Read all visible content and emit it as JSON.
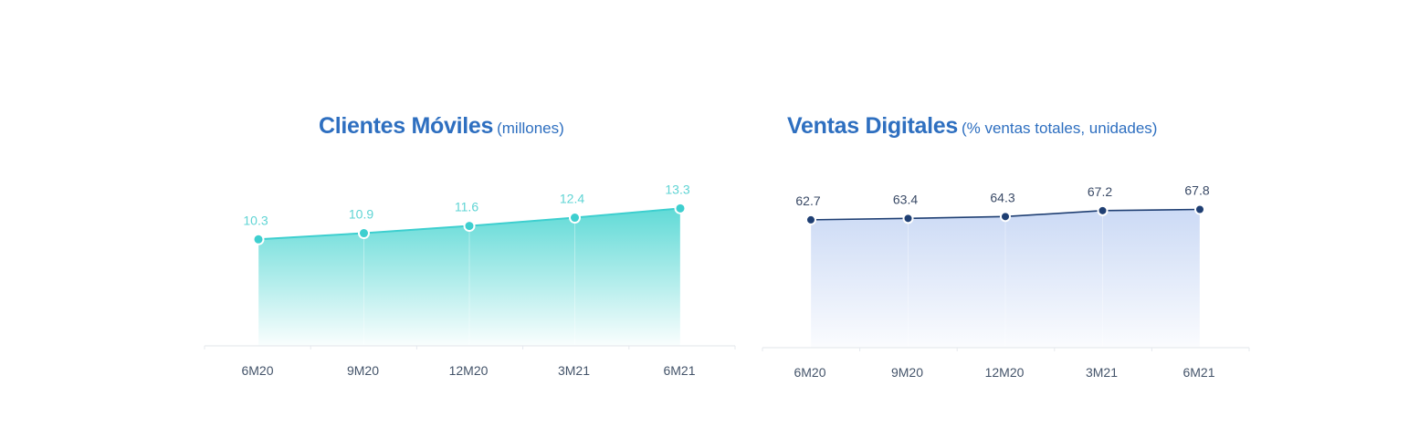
{
  "colors": {
    "title": "#2e6fc0",
    "axis_text": "#44546a",
    "teal": "#3ecfcf",
    "teal_label": "#5fd4d4",
    "navy": "#1f3f73",
    "navy_label": "#3a4a66",
    "navy_fill": "#d3e0f7"
  },
  "chart_data": [
    {
      "type": "area",
      "title": "Clientes Móviles",
      "subtitle": "(millones)",
      "categories": [
        "6M20",
        "9M20",
        "12M20",
        "3M21",
        "6M21"
      ],
      "series": [
        {
          "values": [
            10.3,
            10.9,
            11.6,
            12.4,
            13.3
          ],
          "labels": [
            "10.3",
            "10.9",
            "11.6",
            "12.4",
            "13.3"
          ]
        }
      ],
      "ylim": [
        0,
        15.8
      ],
      "grid": false,
      "legend": "none"
    },
    {
      "type": "area",
      "title": "Ventas Digitales",
      "subtitle": "(% ventas totales, unidades)",
      "categories": [
        "6M20",
        "9M20",
        "12M20",
        "3M21",
        "6M21"
      ],
      "series": [
        {
          "values": [
            62.7,
            63.4,
            64.3,
            67.2,
            67.8
          ],
          "labels": [
            "62.7",
            "63.4",
            "64.3",
            "67.2",
            "67.8"
          ]
        }
      ],
      "ylim": [
        0,
        81
      ],
      "grid": false,
      "legend": "none"
    }
  ]
}
